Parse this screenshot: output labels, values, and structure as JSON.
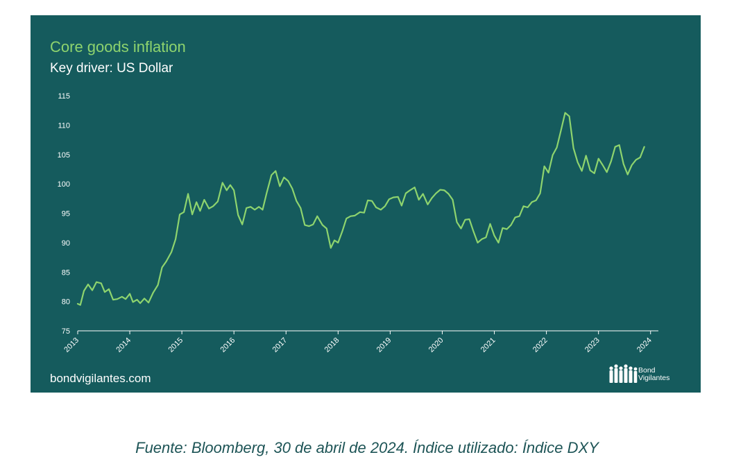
{
  "caption": "Fuente: Bloomberg, 30 de abril de 2024. Índice utilizado: Índice DXY",
  "branding": {
    "site": "bondvigilantes.com",
    "logo_line1": "Bond",
    "logo_line2": "Vigilantes"
  },
  "colors": {
    "panel_bg": "#155b5d",
    "line": "#8ed46e",
    "title": "#8ed46e",
    "text": "#ffffff",
    "caption": "#1d5456"
  },
  "chart_data": {
    "type": "line",
    "title": "Core goods inflation",
    "subtitle": "Key driver: US Dollar",
    "xlabel": "",
    "ylabel": "",
    "ylim": [
      75,
      115
    ],
    "yticks": [
      "75",
      "80",
      "85",
      "90",
      "95",
      "100",
      "105",
      "110",
      "115"
    ],
    "xticks": [
      "2013",
      "2014",
      "2015",
      "2016",
      "2017",
      "2018",
      "2019",
      "2020",
      "2021",
      "2022",
      "2023",
      "2024"
    ],
    "grid": false,
    "series": [
      {
        "values": [
          [
            2013.0,
            79.6
          ],
          [
            2013.05,
            79.4
          ],
          [
            2013.12,
            81.8
          ],
          [
            2013.2,
            82.9
          ],
          [
            2013.28,
            81.9
          ],
          [
            2013.36,
            83.3
          ],
          [
            2013.45,
            83.1
          ],
          [
            2013.52,
            81.6
          ],
          [
            2013.6,
            82.1
          ],
          [
            2013.68,
            80.3
          ],
          [
            2013.76,
            80.4
          ],
          [
            2013.85,
            80.8
          ],
          [
            2013.92,
            80.4
          ],
          [
            2014.0,
            81.3
          ],
          [
            2014.06,
            79.9
          ],
          [
            2014.14,
            80.3
          ],
          [
            2014.2,
            79.7
          ],
          [
            2014.28,
            80.5
          ],
          [
            2014.36,
            79.8
          ],
          [
            2014.45,
            81.5
          ],
          [
            2014.54,
            82.8
          ],
          [
            2014.62,
            85.8
          ],
          [
            2014.7,
            86.8
          ],
          [
            2014.8,
            88.4
          ],
          [
            2014.88,
            90.6
          ],
          [
            2014.96,
            94.8
          ],
          [
            2015.04,
            95.2
          ],
          [
            2015.12,
            98.3
          ],
          [
            2015.2,
            94.8
          ],
          [
            2015.28,
            96.9
          ],
          [
            2015.35,
            95.4
          ],
          [
            2015.43,
            97.3
          ],
          [
            2015.52,
            95.8
          ],
          [
            2015.6,
            96.2
          ],
          [
            2015.69,
            97.0
          ],
          [
            2015.78,
            100.2
          ],
          [
            2015.86,
            98.9
          ],
          [
            2015.93,
            99.8
          ],
          [
            2016.0,
            98.9
          ],
          [
            2016.08,
            94.7
          ],
          [
            2016.16,
            93.1
          ],
          [
            2016.24,
            95.9
          ],
          [
            2016.32,
            96.1
          ],
          [
            2016.4,
            95.6
          ],
          [
            2016.48,
            96.1
          ],
          [
            2016.55,
            95.6
          ],
          [
            2016.63,
            98.5
          ],
          [
            2016.72,
            101.5
          ],
          [
            2016.8,
            102.2
          ],
          [
            2016.88,
            99.6
          ],
          [
            2016.96,
            101.1
          ],
          [
            2017.04,
            100.5
          ],
          [
            2017.12,
            99.2
          ],
          [
            2017.2,
            97.1
          ],
          [
            2017.28,
            95.9
          ],
          [
            2017.36,
            93.0
          ],
          [
            2017.44,
            92.8
          ],
          [
            2017.52,
            93.1
          ],
          [
            2017.6,
            94.5
          ],
          [
            2017.7,
            93.0
          ],
          [
            2017.78,
            92.4
          ],
          [
            2017.86,
            89.1
          ],
          [
            2017.93,
            90.4
          ],
          [
            2018.0,
            90.0
          ],
          [
            2018.08,
            91.9
          ],
          [
            2018.16,
            94.1
          ],
          [
            2018.24,
            94.5
          ],
          [
            2018.32,
            94.6
          ],
          [
            2018.42,
            95.2
          ],
          [
            2018.5,
            95.1
          ],
          [
            2018.57,
            97.2
          ],
          [
            2018.65,
            97.1
          ],
          [
            2018.73,
            96.0
          ],
          [
            2018.82,
            95.6
          ],
          [
            2018.9,
            96.2
          ],
          [
            2018.98,
            97.4
          ],
          [
            2019.06,
            97.7
          ],
          [
            2019.15,
            97.8
          ],
          [
            2019.22,
            96.3
          ],
          [
            2019.3,
            98.4
          ],
          [
            2019.38,
            98.9
          ],
          [
            2019.47,
            99.4
          ],
          [
            2019.55,
            97.3
          ],
          [
            2019.63,
            98.3
          ],
          [
            2019.72,
            96.5
          ],
          [
            2019.8,
            97.6
          ],
          [
            2019.88,
            98.4
          ],
          [
            2019.96,
            99.0
          ],
          [
            2020.04,
            98.9
          ],
          [
            2020.12,
            98.3
          ],
          [
            2020.2,
            97.3
          ],
          [
            2020.28,
            93.5
          ],
          [
            2020.36,
            92.4
          ],
          [
            2020.44,
            93.9
          ],
          [
            2020.52,
            94.0
          ],
          [
            2020.6,
            91.9
          ],
          [
            2020.68,
            90.0
          ],
          [
            2020.76,
            90.6
          ],
          [
            2020.84,
            90.9
          ],
          [
            2020.92,
            93.2
          ],
          [
            2021.0,
            91.2
          ],
          [
            2021.08,
            90.0
          ],
          [
            2021.16,
            92.5
          ],
          [
            2021.24,
            92.3
          ],
          [
            2021.32,
            93.0
          ],
          [
            2021.4,
            94.3
          ],
          [
            2021.48,
            94.5
          ],
          [
            2021.56,
            96.2
          ],
          [
            2021.64,
            96.0
          ],
          [
            2021.72,
            96.9
          ],
          [
            2021.8,
            97.2
          ],
          [
            2021.88,
            98.4
          ],
          [
            2021.96,
            103.0
          ],
          [
            2022.04,
            101.9
          ],
          [
            2022.12,
            104.9
          ],
          [
            2022.2,
            106.2
          ],
          [
            2022.28,
            109.1
          ],
          [
            2022.36,
            112.1
          ],
          [
            2022.44,
            111.5
          ],
          [
            2022.52,
            106.1
          ],
          [
            2022.6,
            103.7
          ],
          [
            2022.68,
            102.2
          ],
          [
            2022.76,
            104.8
          ],
          [
            2022.84,
            102.3
          ],
          [
            2022.92,
            101.8
          ],
          [
            2023.0,
            104.3
          ],
          [
            2023.08,
            103.2
          ],
          [
            2023.16,
            102.0
          ],
          [
            2023.24,
            103.8
          ],
          [
            2023.32,
            106.3
          ],
          [
            2023.4,
            106.6
          ],
          [
            2023.48,
            103.4
          ],
          [
            2023.56,
            101.6
          ],
          [
            2023.64,
            103.2
          ],
          [
            2023.72,
            104.1
          ],
          [
            2023.8,
            104.5
          ],
          [
            2023.88,
            106.3
          ]
        ]
      }
    ]
  }
}
